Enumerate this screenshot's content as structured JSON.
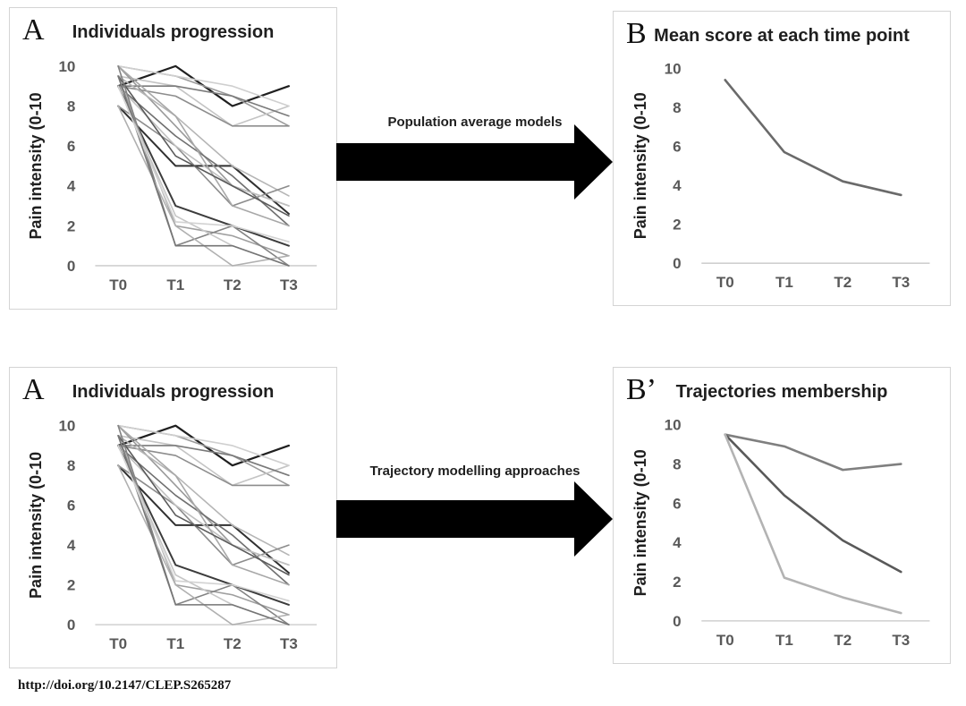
{
  "footer": {
    "doi": "http://doi.org/10.2147/CLEP.S265287"
  },
  "arrows": [
    {
      "label": "Population average models"
    },
    {
      "label": "Trajectory modelling approaches"
    }
  ],
  "chart_data": [
    {
      "type": "line",
      "panel_letter": "A",
      "title": "Individuals progression",
      "xlabel": "",
      "ylabel": "Pain intensity (0-10",
      "categories": [
        "T0",
        "T1",
        "T2",
        "T3"
      ],
      "yticks": [
        0,
        2,
        4,
        6,
        8,
        10
      ],
      "ylim": [
        0,
        10
      ],
      "grid": false,
      "legend": "none",
      "series": [
        {
          "values": [
            9,
            10,
            8,
            9
          ],
          "color": "#1f1f1f",
          "width": 2.2
        },
        {
          "values": [
            10,
            9.5,
            8.5,
            7
          ],
          "color": "#9b9b9b",
          "width": 1.6
        },
        {
          "values": [
            9.5,
            9,
            7,
            8
          ],
          "color": "#c4c4c4",
          "width": 1.6
        },
        {
          "values": [
            9,
            9,
            8.5,
            7.5
          ],
          "color": "#7a7a7a",
          "width": 1.6
        },
        {
          "values": [
            10,
            9.5,
            9,
            8
          ],
          "color": "#cfcfcf",
          "width": 1.6
        },
        {
          "values": [
            9,
            8.5,
            7,
            7
          ],
          "color": "#8d8d8d",
          "width": 1.6
        },
        {
          "values": [
            8,
            5,
            5,
            2.6
          ],
          "color": "#303030",
          "width": 2.0
        },
        {
          "values": [
            10,
            7,
            4,
            3
          ],
          "color": "#9a9a9a",
          "width": 1.6
        },
        {
          "values": [
            9,
            6.5,
            4.5,
            2
          ],
          "color": "#6f6f6f",
          "width": 1.6
        },
        {
          "values": [
            9.5,
            7.5,
            5,
            3.5
          ],
          "color": "#b5b5b5",
          "width": 1.6
        },
        {
          "values": [
            8,
            6,
            3,
            4
          ],
          "color": "#8c8c8c",
          "width": 1.6
        },
        {
          "values": [
            9,
            6,
            4,
            3
          ],
          "color": "#c0c0c0",
          "width": 1.6
        },
        {
          "values": [
            10,
            7.5,
            3,
            2
          ],
          "color": "#a8a8a8",
          "width": 1.6
        },
        {
          "values": [
            9.5,
            5.5,
            4,
            2.5
          ],
          "color": "#5a5a5a",
          "width": 1.6
        },
        {
          "values": [
            9,
            3,
            2,
            1
          ],
          "color": "#3c3c3c",
          "width": 2.0
        },
        {
          "values": [
            9.5,
            2,
            1.5,
            0.5
          ],
          "color": "#9f9f9f",
          "width": 1.6
        },
        {
          "values": [
            10,
            1,
            2,
            0
          ],
          "color": "#838383",
          "width": 1.6
        },
        {
          "values": [
            9,
            2.5,
            1,
            0
          ],
          "color": "#c6c6c6",
          "width": 1.6
        },
        {
          "values": [
            8,
            2,
            0,
            0.5
          ],
          "color": "#b0b0b0",
          "width": 1.6
        },
        {
          "values": [
            9.5,
            1,
            1,
            0
          ],
          "color": "#757575",
          "width": 1.6
        },
        {
          "values": [
            9,
            2.2,
            2,
            1.2
          ],
          "color": "#d2d2d2",
          "width": 1.6
        }
      ]
    },
    {
      "type": "line",
      "panel_letter": "B",
      "title": "Mean score at each time point",
      "xlabel": "",
      "ylabel": "Pain intensity (0-10",
      "categories": [
        "T0",
        "T1",
        "T2",
        "T3"
      ],
      "yticks": [
        0,
        2,
        4,
        6,
        8,
        10
      ],
      "ylim": [
        0,
        10
      ],
      "grid": false,
      "legend": "none",
      "series": [
        {
          "values": [
            9.4,
            5.7,
            4.2,
            3.5
          ],
          "color": "#6a6a6a",
          "width": 2.6
        }
      ]
    },
    {
      "type": "line",
      "panel_letter": "A",
      "title": "Individuals progression",
      "xlabel": "",
      "ylabel": "Pain intensity (0-10",
      "categories": [
        "T0",
        "T1",
        "T2",
        "T3"
      ],
      "yticks": [
        0,
        2,
        4,
        6,
        8,
        10
      ],
      "ylim": [
        0,
        10
      ],
      "grid": false,
      "legend": "none",
      "series": [
        {
          "values": [
            9,
            10,
            8,
            9
          ],
          "color": "#1f1f1f",
          "width": 2.2
        },
        {
          "values": [
            10,
            9.5,
            8.5,
            7
          ],
          "color": "#9b9b9b",
          "width": 1.6
        },
        {
          "values": [
            9.5,
            9,
            7,
            8
          ],
          "color": "#c4c4c4",
          "width": 1.6
        },
        {
          "values": [
            9,
            9,
            8.5,
            7.5
          ],
          "color": "#7a7a7a",
          "width": 1.6
        },
        {
          "values": [
            10,
            9.5,
            9,
            8
          ],
          "color": "#cfcfcf",
          "width": 1.6
        },
        {
          "values": [
            9,
            8.5,
            7,
            7
          ],
          "color": "#8d8d8d",
          "width": 1.6
        },
        {
          "values": [
            8,
            5,
            5,
            2.6
          ],
          "color": "#303030",
          "width": 2.0
        },
        {
          "values": [
            10,
            7,
            4,
            3
          ],
          "color": "#9a9a9a",
          "width": 1.6
        },
        {
          "values": [
            9,
            6.5,
            4.5,
            2
          ],
          "color": "#6f6f6f",
          "width": 1.6
        },
        {
          "values": [
            9.5,
            7.5,
            5,
            3.5
          ],
          "color": "#b5b5b5",
          "width": 1.6
        },
        {
          "values": [
            8,
            6,
            3,
            4
          ],
          "color": "#8c8c8c",
          "width": 1.6
        },
        {
          "values": [
            9,
            6,
            4,
            3
          ],
          "color": "#c0c0c0",
          "width": 1.6
        },
        {
          "values": [
            10,
            7.5,
            3,
            2
          ],
          "color": "#a8a8a8",
          "width": 1.6
        },
        {
          "values": [
            9.5,
            5.5,
            4,
            2.5
          ],
          "color": "#5a5a5a",
          "width": 1.6
        },
        {
          "values": [
            9,
            3,
            2,
            1
          ],
          "color": "#3c3c3c",
          "width": 2.0
        },
        {
          "values": [
            9.5,
            2,
            1.5,
            0.5
          ],
          "color": "#9f9f9f",
          "width": 1.6
        },
        {
          "values": [
            10,
            1,
            2,
            0
          ],
          "color": "#838383",
          "width": 1.6
        },
        {
          "values": [
            9,
            2.5,
            1,
            0
          ],
          "color": "#c6c6c6",
          "width": 1.6
        },
        {
          "values": [
            8,
            2,
            0,
            0.5
          ],
          "color": "#b0b0b0",
          "width": 1.6
        },
        {
          "values": [
            9.5,
            1,
            1,
            0
          ],
          "color": "#757575",
          "width": 1.6
        },
        {
          "values": [
            9,
            2.2,
            2,
            1.2
          ],
          "color": "#d2d2d2",
          "width": 1.6
        }
      ]
    },
    {
      "type": "line",
      "panel_letter": "B’",
      "title": "Trajectories membership",
      "xlabel": "",
      "ylabel": "Pain intensity (0-10",
      "categories": [
        "T0",
        "T1",
        "T2",
        "T3"
      ],
      "yticks": [
        0,
        2,
        4,
        6,
        8,
        10
      ],
      "ylim": [
        0,
        10
      ],
      "grid": false,
      "legend": "none",
      "series": [
        {
          "values": [
            9.5,
            8.9,
            7.7,
            8.0
          ],
          "color": "#7f7f7f",
          "width": 2.6
        },
        {
          "values": [
            9.5,
            6.4,
            4.1,
            2.5
          ],
          "color": "#595959",
          "width": 2.6
        },
        {
          "values": [
            9.5,
            2.2,
            1.2,
            0.4
          ],
          "color": "#b3b3b3",
          "width": 2.6
        }
      ]
    }
  ]
}
